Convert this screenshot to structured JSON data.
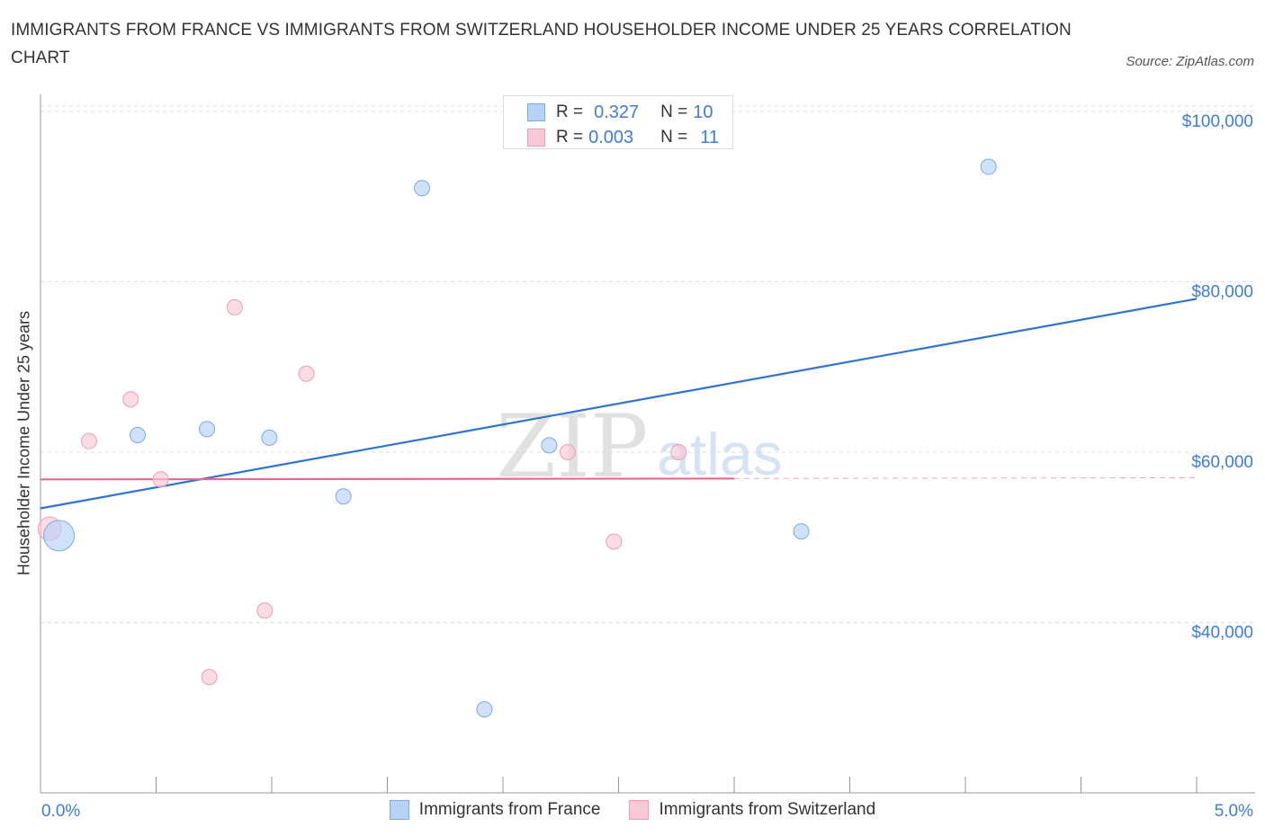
{
  "header": {
    "title": "IMMIGRANTS FROM FRANCE VS IMMIGRANTS FROM SWITZERLAND HOUSEHOLDER INCOME UNDER 25 YEARS CORRELATION CHART",
    "source": "Source: ZipAtlas.com"
  },
  "watermark": {
    "zip": "ZIP",
    "atlas": "atlas"
  },
  "legend": {
    "rows": [
      {
        "r_label": "R =",
        "r_value": "0.327",
        "n_label": "N =",
        "n_value": "10"
      },
      {
        "r_label": "R =",
        "r_value": "0.003",
        "n_label": "N =",
        "n_value": "11"
      }
    ]
  },
  "colors": {
    "france_fill": "#b7d2f7",
    "france_stroke": "#7aaae6",
    "france_line": "#2f72d6",
    "swiss_fill": "#f9c8d6",
    "swiss_stroke": "#ee9db3",
    "swiss_line": "#e36a92",
    "axis_text": "#3d7dd8",
    "grid": "#dddddd"
  },
  "chart_data": {
    "type": "scatter",
    "title": "IMMIGRANTS FROM FRANCE VS IMMIGRANTS FROM SWITZERLAND HOUSEHOLDER INCOME UNDER 25 YEARS CORRELATION CHART",
    "xlabel": "",
    "ylabel": "Householder Income Under 25 years",
    "xlim": [
      0,
      5
    ],
    "ylim": [
      20000,
      102000
    ],
    "x_tick_labels": [
      "0.0%",
      "5.0%"
    ],
    "y_ticks": [
      40000,
      60000,
      80000,
      100000
    ],
    "y_tick_labels": [
      "$40,000",
      "$60,000",
      "$80,000",
      "$100,000"
    ],
    "grid": true,
    "legend_position": "top-center",
    "series": [
      {
        "name": "Immigrants from France",
        "r": 0.327,
        "n": 10,
        "points": [
          {
            "x": 0.08,
            "y": 50200,
            "size": "large"
          },
          {
            "x": 0.42,
            "y": 62000
          },
          {
            "x": 0.72,
            "y": 62700
          },
          {
            "x": 0.99,
            "y": 61700
          },
          {
            "x": 1.31,
            "y": 54800
          },
          {
            "x": 1.65,
            "y": 91000
          },
          {
            "x": 1.92,
            "y": 29800
          },
          {
            "x": 2.2,
            "y": 60800
          },
          {
            "x": 3.29,
            "y": 50700
          },
          {
            "x": 4.1,
            "y": 93500
          }
        ],
        "trend": {
          "x": [
            0,
            5
          ],
          "y": [
            53400,
            78000
          ]
        }
      },
      {
        "name": "Immigrants from Switzerland",
        "r": 0.003,
        "n": 11,
        "points": [
          {
            "x": 0.04,
            "y": 51000,
            "size": "medium"
          },
          {
            "x": 0.21,
            "y": 61300
          },
          {
            "x": 0.39,
            "y": 66200
          },
          {
            "x": 0.52,
            "y": 56800
          },
          {
            "x": 0.73,
            "y": 33600
          },
          {
            "x": 0.84,
            "y": 77000
          },
          {
            "x": 0.97,
            "y": 41400
          },
          {
            "x": 1.15,
            "y": 69200
          },
          {
            "x": 2.28,
            "y": 60000
          },
          {
            "x": 2.48,
            "y": 49500
          },
          {
            "x": 2.76,
            "y": 60000
          }
        ],
        "trend": {
          "x": [
            0,
            3.0
          ],
          "y": [
            56800,
            56900
          ]
        },
        "trend_dashed": {
          "x": [
            3.0,
            5
          ],
          "y": [
            56900,
            57000
          ]
        }
      }
    ]
  },
  "bottom_legend": {
    "france": "Immigrants from France",
    "switzerland": "Immigrants from Switzerland"
  }
}
